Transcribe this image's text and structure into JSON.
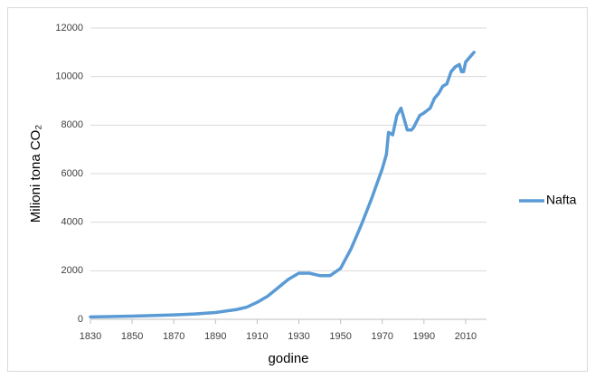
{
  "chart_data": {
    "type": "line",
    "x_label": "godine",
    "y_label": "Milioni tona CO₂",
    "x": [
      1830,
      1850,
      1870,
      1880,
      1890,
      1900,
      1905,
      1910,
      1915,
      1920,
      1925,
      1930,
      1935,
      1940,
      1945,
      1950,
      1955,
      1960,
      1965,
      1970,
      1972,
      1973,
      1975,
      1977,
      1979,
      1980,
      1982,
      1984,
      1985,
      1988,
      1990,
      1993,
      1995,
      1997,
      1999,
      2001,
      2003,
      2005,
      2007,
      2008,
      2009,
      2010,
      2012,
      2014
    ],
    "series": [
      {
        "name": "Nafta",
        "color": "#5b9bd5",
        "values": [
          100,
          130,
          180,
          220,
          280,
          400,
          500,
          700,
          950,
          1300,
          1650,
          1900,
          1900,
          1800,
          1800,
          2100,
          2900,
          3900,
          5000,
          6200,
          6800,
          7700,
          7600,
          8400,
          8700,
          8400,
          7800,
          7800,
          7900,
          8400,
          8500,
          8700,
          9100,
          9300,
          9600,
          9700,
          10200,
          10400,
          10500,
          10200,
          10200,
          10600,
          10800,
          11000
        ]
      }
    ],
    "xlim": [
      1830,
      2020
    ],
    "xticks": [
      1830,
      1850,
      1870,
      1890,
      1910,
      1930,
      1950,
      1970,
      1990,
      2010
    ],
    "ylim": [
      0,
      12000
    ],
    "yticks": [
      0,
      2000,
      4000,
      6000,
      8000,
      10000,
      12000
    ],
    "grid": true,
    "legend": "right"
  }
}
